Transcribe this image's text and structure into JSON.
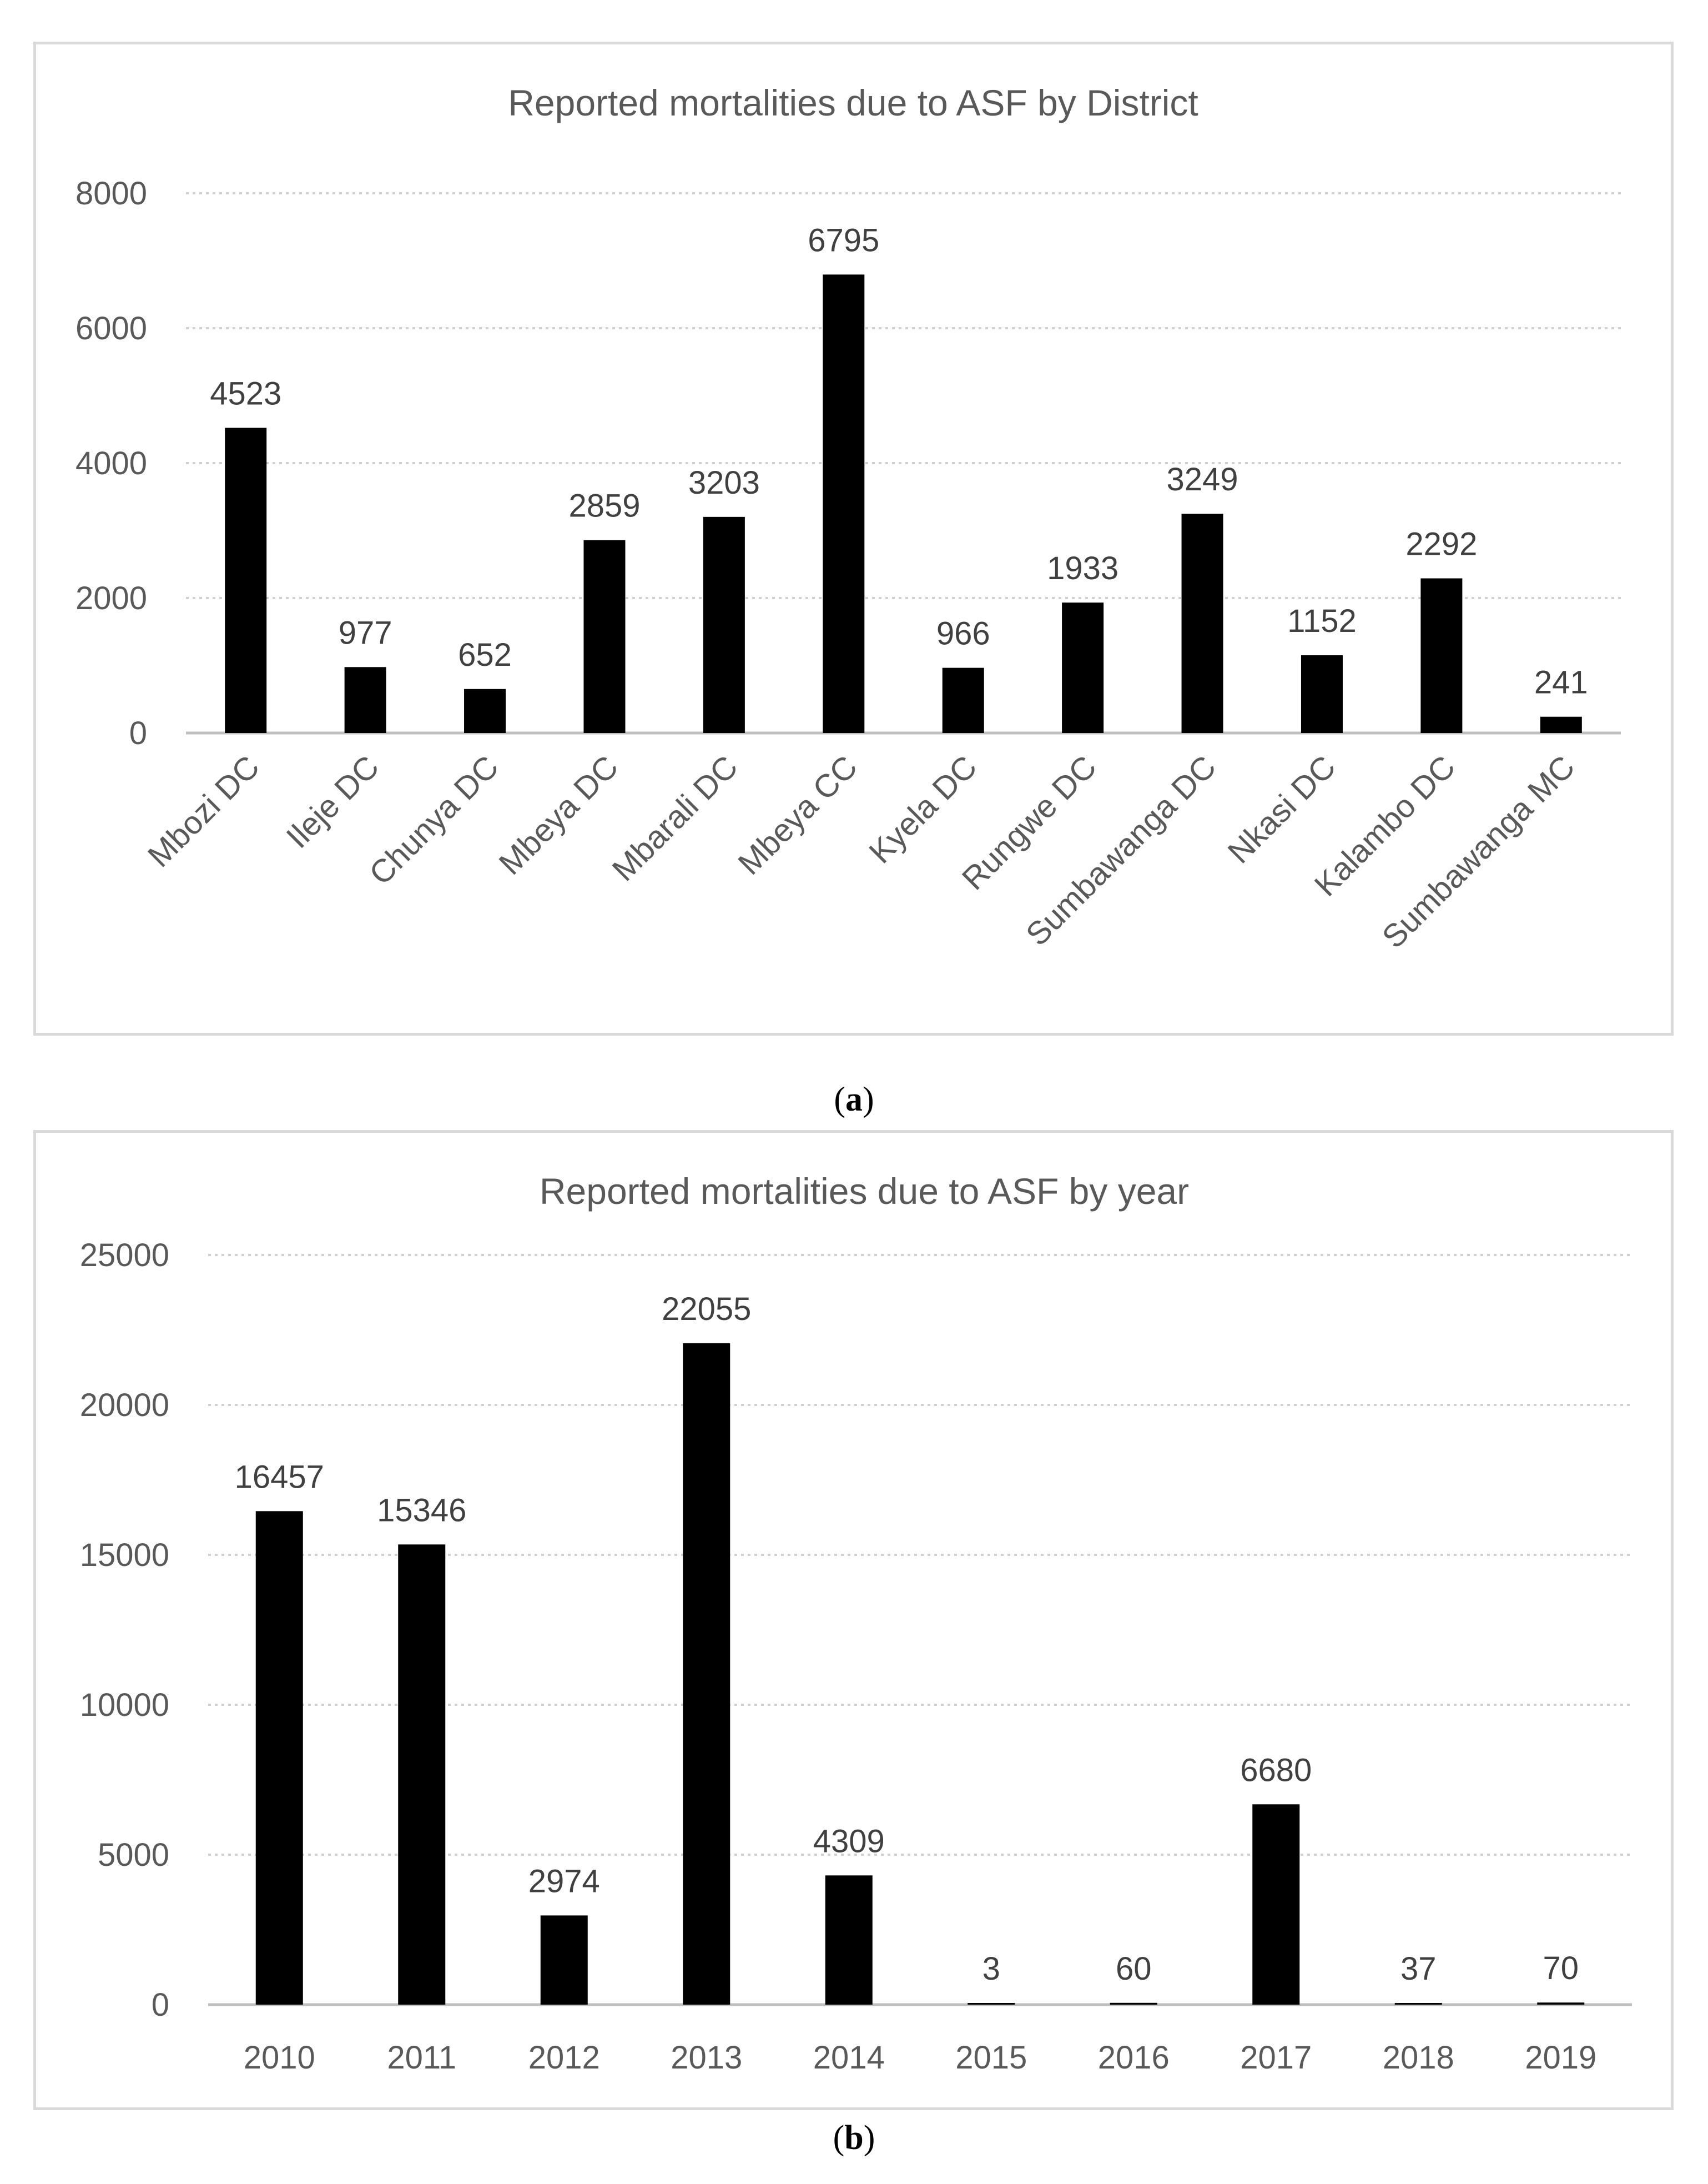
{
  "colors": {
    "bar": "#000000",
    "grid": "#d0d0d0",
    "axis": "#bfbfbf",
    "text": "#595959",
    "label": "#404040",
    "border": "#d9d9d9"
  },
  "chart_data": [
    {
      "id": "a",
      "type": "bar",
      "title": "Reported mortalities due to ASF by District",
      "xlabel": "",
      "ylabel": "",
      "ylim": [
        0,
        8000
      ],
      "yticks": [
        0,
        2000,
        4000,
        6000,
        8000
      ],
      "grid": true,
      "legend": "none",
      "categories": [
        "Mbozi DC",
        "Ileje DC",
        "Chunya DC",
        "Mbeya DC",
        "Mbarali DC",
        "Mbeya CC",
        "Kyela DC",
        "Rungwe DC",
        "Sumbawanga DC",
        "Nkasi DC",
        "Kalambo DC",
        "Sumbawanga MC"
      ],
      "values": [
        4523,
        977,
        652,
        2859,
        3203,
        6795,
        966,
        1933,
        3249,
        1152,
        2292,
        241
      ],
      "caption_open": "(",
      "caption_letter": "a",
      "caption_close": ")"
    },
    {
      "id": "b",
      "type": "bar",
      "title": "Reported mortalities due to ASF by year",
      "xlabel": "",
      "ylabel": "",
      "ylim": [
        0,
        25000
      ],
      "yticks": [
        0,
        5000,
        10000,
        15000,
        20000,
        25000
      ],
      "grid": true,
      "legend": "none",
      "categories": [
        "2010",
        "2011",
        "2012",
        "2013",
        "2014",
        "2015",
        "2016",
        "2017",
        "2018",
        "2019"
      ],
      "values": [
        16457,
        15346,
        2974,
        22055,
        4309,
        3,
        60,
        6680,
        37,
        70
      ],
      "caption_open": "(",
      "caption_letter": "b",
      "caption_close": ")"
    }
  ]
}
